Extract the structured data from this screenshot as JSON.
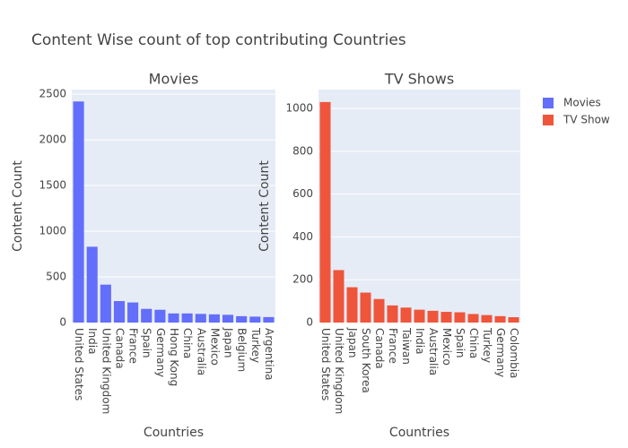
{
  "title": "Content Wise count of top contributing Countries",
  "chart_data": [
    {
      "type": "bar",
      "title": "Movies",
      "x_label": "Countries",
      "y_label": "Content Count",
      "categories": [
        "United States",
        "India",
        "United Kingdom",
        "Canada",
        "France",
        "Spain",
        "Germany",
        "Hong Kong",
        "China",
        "Australia",
        "Mexico",
        "Japan",
        "Belgium",
        "Turkey",
        "Argentina"
      ],
      "series": [
        {
          "name": "Movies",
          "color": "#636efa",
          "values": [
            2420,
            830,
            415,
            235,
            220,
            150,
            140,
            100,
            100,
            95,
            90,
            85,
            70,
            65,
            60
          ]
        }
      ],
      "ylim": [
        0,
        2550
      ],
      "yticks": [
        0,
        500,
        1000,
        1500,
        2000,
        2500
      ],
      "grid": true
    },
    {
      "type": "bar",
      "title": "TV Shows",
      "x_label": "Countries",
      "y_label": "Content Count",
      "categories": [
        "United States",
        "United Kingdom",
        "Japan",
        "South Korea",
        "Canada",
        "France",
        "Taiwan",
        "India",
        "Australia",
        "Mexico",
        "Spain",
        "China",
        "Turkey",
        "Germany",
        "Colombia"
      ],
      "series": [
        {
          "name": "TV Show",
          "color": "#EF553B",
          "values": [
            1030,
            245,
            165,
            140,
            110,
            80,
            70,
            60,
            55,
            50,
            48,
            40,
            35,
            30,
            25
          ]
        }
      ],
      "ylim": [
        0,
        1088
      ],
      "yticks": [
        0,
        200,
        400,
        600,
        800,
        1000
      ],
      "grid": true
    }
  ]
}
